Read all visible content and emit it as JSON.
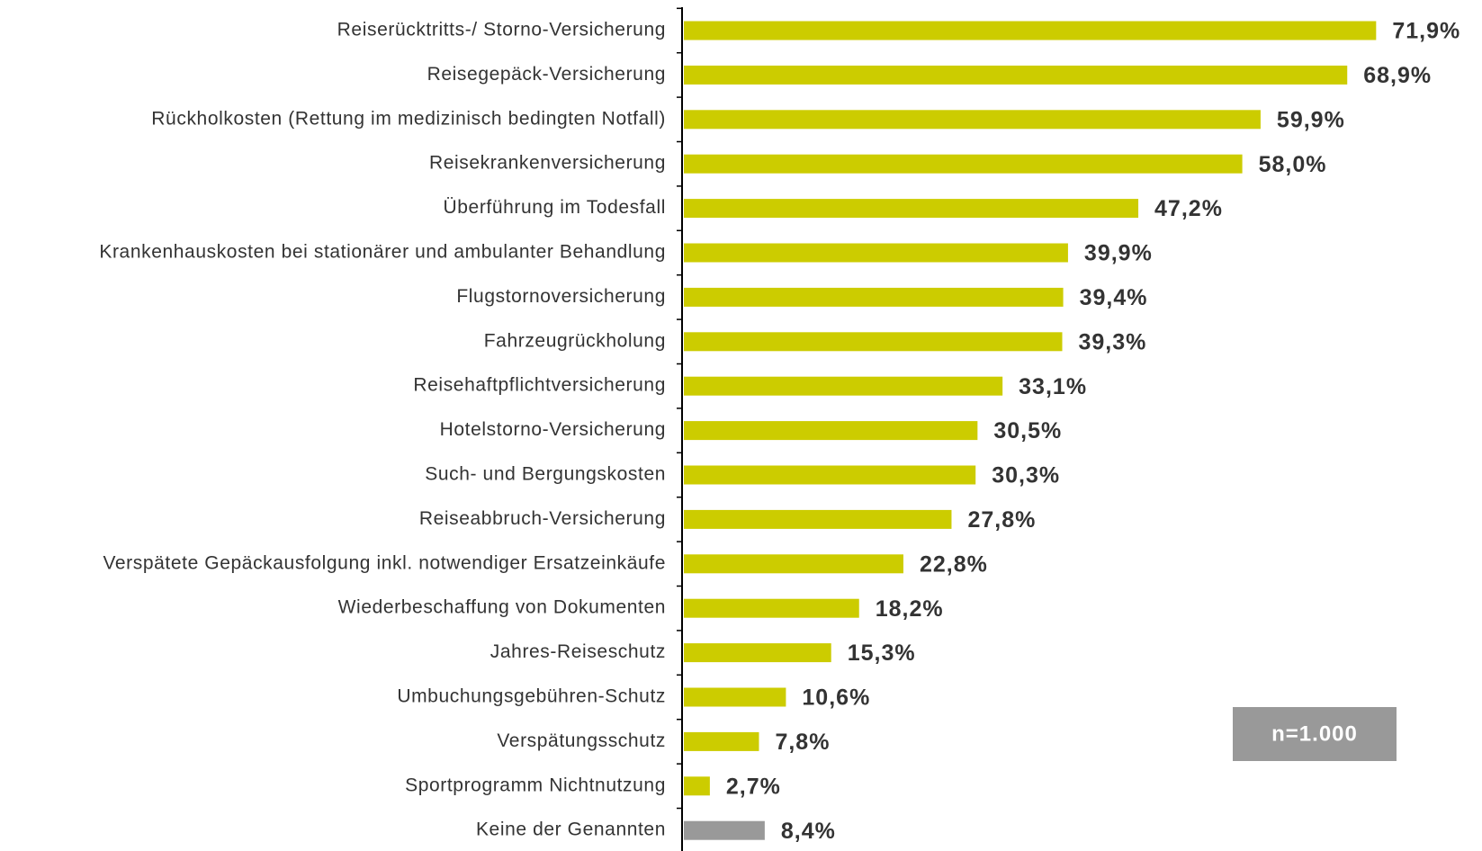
{
  "chart_data": {
    "type": "bar",
    "orientation": "horizontal",
    "categories": [
      "Reiserücktritts-/ Storno-Versicherung",
      "Reisegepäck-Versicherung",
      "Rückholkosten (Rettung im medizinisch bedingten Notfall)",
      "Reisekrankenversicherung",
      "Überführung im Todesfall",
      "Krankenhauskosten bei stationärer und ambulanter Behandlung",
      "Flugstornoversicherung",
      "Fahrzeugrückholung",
      "Reisehaftpflichtversicherung",
      "Hotelstorno-Versicherung",
      "Such- und Bergungskosten",
      "Reiseabbruch-Versicherung",
      "Verspätete Gepäckausfolgung inkl. notwendiger Ersatzeinkäufe",
      "Wiederbeschaffung von Dokumenten",
      "Jahres-Reiseschutz",
      "Umbuchungsgebühren-Schutz",
      "Verspätungsschutz",
      "Sportprogramm Nichtnutzung",
      "Keine der Genannten"
    ],
    "values": [
      71.9,
      68.9,
      59.9,
      58.0,
      47.2,
      39.9,
      39.4,
      39.3,
      33.1,
      30.5,
      30.3,
      27.8,
      22.8,
      18.2,
      15.3,
      10.6,
      7.8,
      2.7,
      8.4
    ],
    "value_labels": [
      "71,9%",
      "68,9%",
      "59,9%",
      "58,0%",
      "47,2%",
      "39,9%",
      "39,4%",
      "39,3%",
      "33,1%",
      "30,5%",
      "30,3%",
      "27,8%",
      "22,8%",
      "18,2%",
      "15,3%",
      "10,6%",
      "7,8%",
      "2,7%",
      "8,4%"
    ],
    "colors": [
      "#cccc00",
      "#cccc00",
      "#cccc00",
      "#cccc00",
      "#cccc00",
      "#cccc00",
      "#cccc00",
      "#cccc00",
      "#cccc00",
      "#cccc00",
      "#cccc00",
      "#cccc00",
      "#cccc00",
      "#cccc00",
      "#cccc00",
      "#cccc00",
      "#cccc00",
      "#cccc00",
      "#999999"
    ],
    "annotation": "n=1.000"
  }
}
